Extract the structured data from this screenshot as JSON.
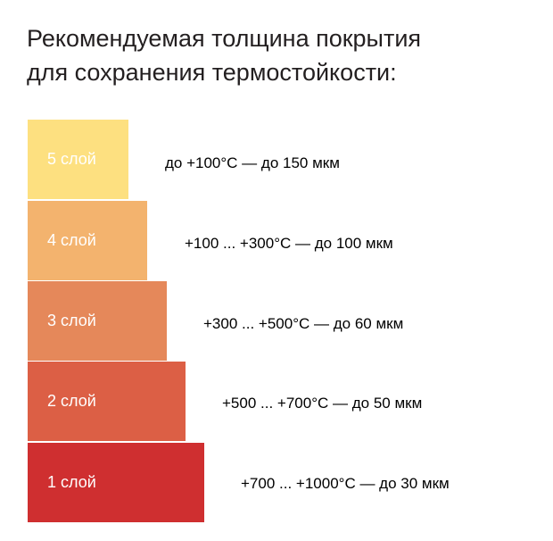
{
  "header": {
    "title_line1": "Рекомендуемая толщина покрытия",
    "title_line2": "для сохранения термостойкости:"
  },
  "layers": [
    {
      "label": "5 слой",
      "text": "до +100°С — до 150 мкм"
    },
    {
      "label": "4 слой",
      "text": "+100 ... +300°С — до 100 мкм"
    },
    {
      "label": "3 слой",
      "text": "+300 ... +500°С — до 60 мкм"
    },
    {
      "label": "2 слой",
      "text": "+500 ... +700°С — до 50 мкм"
    },
    {
      "label": "1 слой",
      "text": "+700 ... +1000°С — до 30 мкм"
    }
  ]
}
